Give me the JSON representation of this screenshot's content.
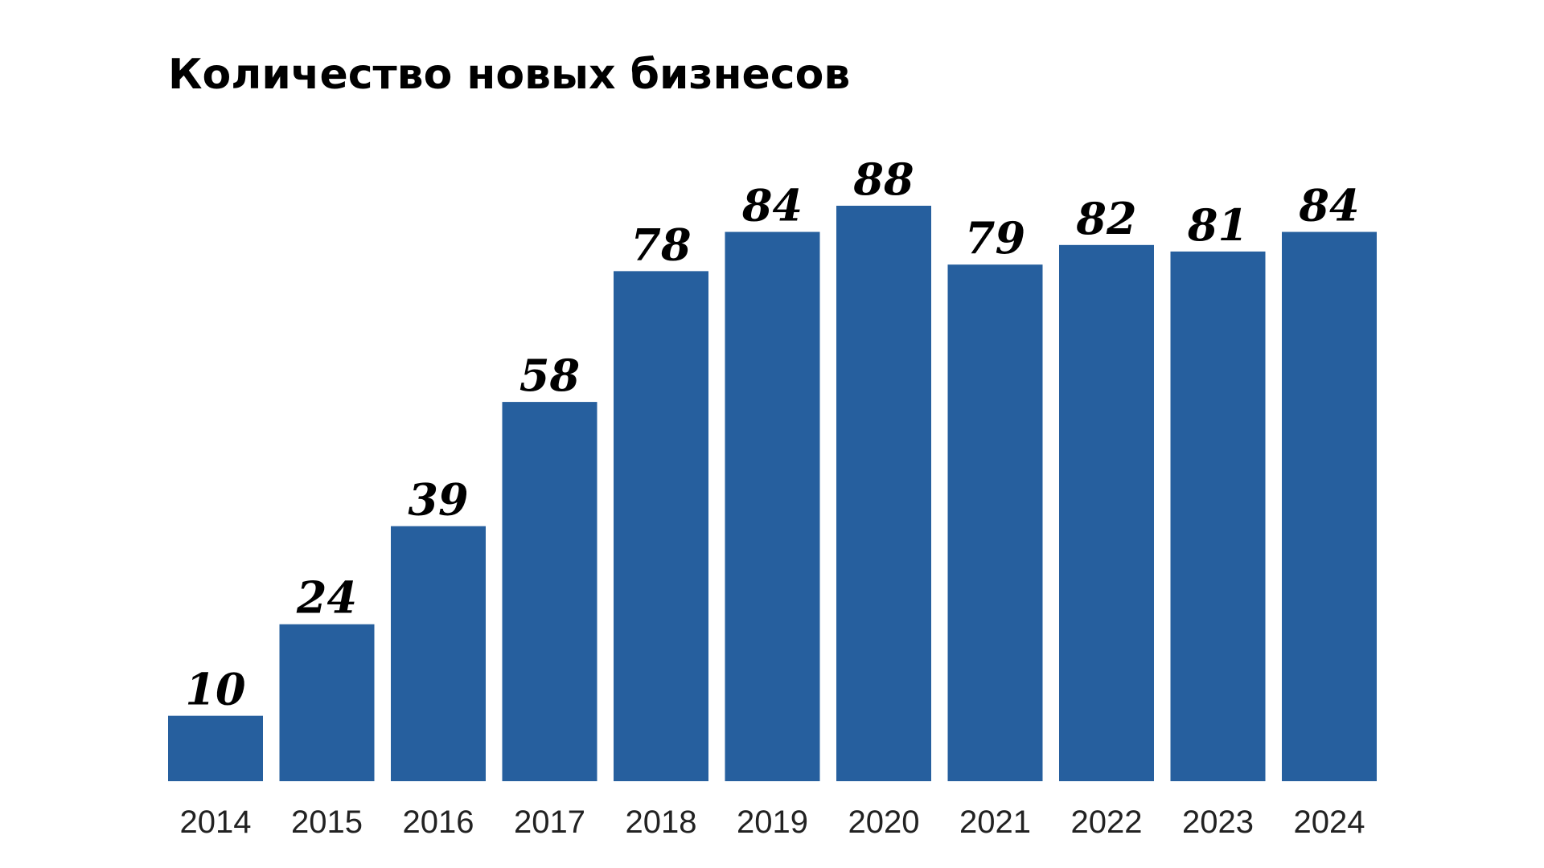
{
  "chart_data": {
    "type": "bar",
    "title": "Количество новых бизнесов",
    "categories": [
      "2014",
      "2015",
      "2016",
      "2017",
      "2018",
      "2019",
      "2020",
      "2021",
      "2022",
      "2023",
      "2024"
    ],
    "values": [
      10,
      24,
      39,
      58,
      78,
      84,
      88,
      79,
      82,
      81,
      84
    ],
    "color": "#265f9e"
  }
}
